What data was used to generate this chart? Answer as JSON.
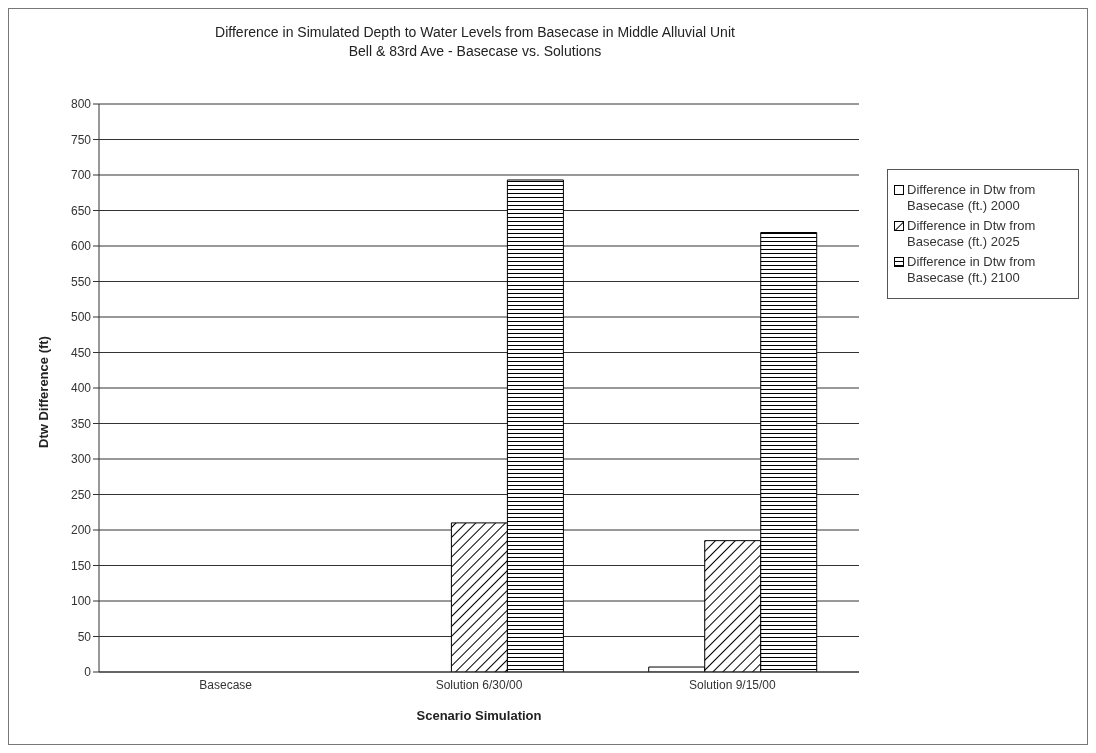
{
  "chart_data": {
    "type": "bar",
    "title": "Difference in Simulated Depth to Water Levels from Basecase in Middle Alluvial Unit",
    "subtitle": "Bell & 83rd Ave - Basecase vs. Solutions",
    "xlabel": "Scenario Simulation",
    "ylabel": "Dtw Difference (ft)",
    "categories": [
      "Basecase",
      "Solution 6/30/00",
      "Solution 9/15/00"
    ],
    "series": [
      {
        "name": "Difference in Dtw from Basecase (ft.) 2000",
        "color": "#ffffff",
        "values": [
          0,
          0,
          7
        ]
      },
      {
        "name": "Difference in Dtw from Basecase (ft.) 2025",
        "color": "#000000",
        "values": [
          0,
          210,
          185
        ]
      },
      {
        "name": "Difference in Dtw from Basecase (ft.) 2100",
        "color": "#000000",
        "values": [
          0,
          693,
          619
        ]
      }
    ],
    "ylim": [
      0,
      800
    ],
    "yticks": [
      0,
      50,
      100,
      150,
      200,
      250,
      300,
      350,
      400,
      450,
      500,
      550,
      600,
      650,
      700,
      750,
      800
    ],
    "grid": "y",
    "legend": "right"
  }
}
